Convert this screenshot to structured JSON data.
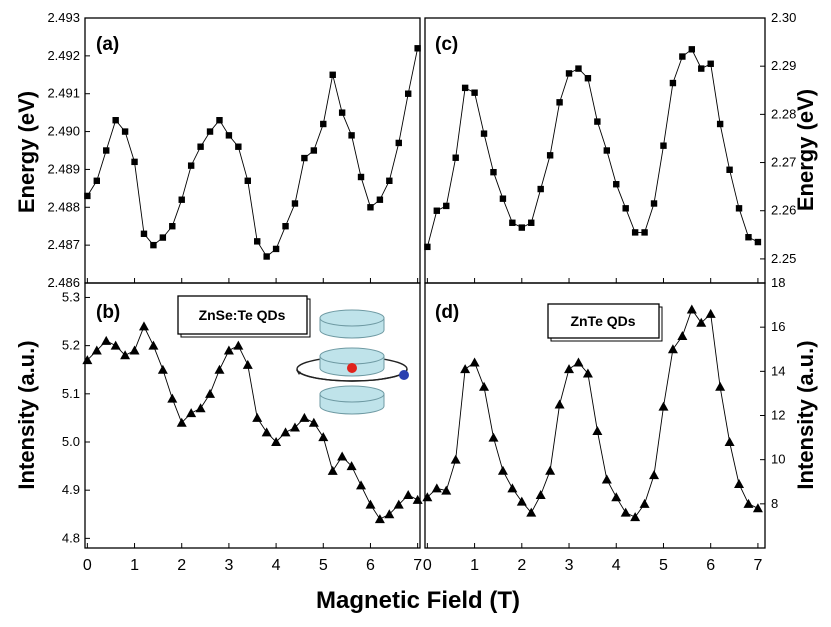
{
  "figure": {
    "xlabel": "Magnetic Field (T)",
    "left_ylabel_top": "Energy (eV)",
    "left_ylabel_bottom": "Intensity (a.u.)",
    "right_ylabel_top": "Energy (eV)",
    "right_ylabel_bottom": "Intensity (a.u.)",
    "legend_b": "ZnSe:Te QDs",
    "legend_d": "ZnTe QDs",
    "inset_colors": {
      "disc": "#bfe3ea",
      "disc_edge": "#6f9aa3",
      "electron": "#e0221b",
      "hole": "#2a3fb0"
    }
  },
  "chart_data": [
    {
      "id": "a",
      "label": "(a)",
      "type": "line",
      "marker": "square",
      "xlabel": "Magnetic Field (T)",
      "ylabel": "Energy (eV)",
      "xlim": [
        -0.05,
        7.05
      ],
      "ylim": [
        2.486,
        2.493
      ],
      "yticks": [
        2.486,
        2.487,
        2.488,
        2.489,
        2.49,
        2.491,
        2.492,
        2.493
      ],
      "ytick_labels": [
        "2.486",
        "2.487",
        "2.488",
        "2.489",
        "2.490",
        "2.491",
        "2.492",
        "2.493"
      ],
      "x": [
        0,
        0.2,
        0.4,
        0.6,
        0.8,
        1.0,
        1.2,
        1.4,
        1.6,
        1.8,
        2.0,
        2.2,
        2.4,
        2.6,
        2.8,
        3.0,
        3.2,
        3.4,
        3.6,
        3.8,
        4.0,
        4.2,
        4.4,
        4.6,
        4.8,
        5.0,
        5.2,
        5.4,
        5.6,
        5.8,
        6.0,
        6.2,
        6.4,
        6.6,
        6.8,
        7.0
      ],
      "y": [
        2.4883,
        2.4887,
        2.4895,
        2.4903,
        2.49,
        2.4892,
        2.4873,
        2.487,
        2.4872,
        2.4875,
        2.4882,
        2.4891,
        2.4896,
        2.49,
        2.4903,
        2.4899,
        2.4896,
        2.4887,
        2.4871,
        2.4867,
        2.4869,
        2.4875,
        2.4881,
        2.4893,
        2.4895,
        2.4902,
        2.4915,
        2.4905,
        2.4899,
        2.4888,
        2.488,
        2.4882,
        2.4887,
        2.4897,
        2.491,
        2.4922
      ]
    },
    {
      "id": "b",
      "label": "(b)",
      "type": "line",
      "marker": "triangle",
      "xlabel": "Magnetic Field (T)",
      "ylabel": "Intensity (a.u.)",
      "xlim": [
        -0.05,
        7.05
      ],
      "ylim": [
        4.78,
        5.33
      ],
      "xticks": [
        0,
        1,
        2,
        3,
        4,
        5,
        6,
        7
      ],
      "xtick_labels": [
        "0",
        "1",
        "2",
        "3",
        "4",
        "5",
        "6",
        "7"
      ],
      "yticks": [
        4.8,
        4.9,
        5.0,
        5.1,
        5.2,
        5.3
      ],
      "ytick_labels": [
        "4.8",
        "4.9",
        "5.0",
        "5.1",
        "5.2",
        "5.3"
      ],
      "x": [
        0,
        0.2,
        0.4,
        0.6,
        0.8,
        1.0,
        1.2,
        1.4,
        1.6,
        1.8,
        2.0,
        2.2,
        2.4,
        2.6,
        2.8,
        3.0,
        3.2,
        3.4,
        3.6,
        3.8,
        4.0,
        4.2,
        4.4,
        4.6,
        4.8,
        5.0,
        5.2,
        5.4,
        5.6,
        5.8,
        6.0,
        6.2,
        6.4,
        6.6,
        6.8,
        7.0
      ],
      "y": [
        5.17,
        5.19,
        5.21,
        5.2,
        5.18,
        5.19,
        5.24,
        5.2,
        5.15,
        5.09,
        5.04,
        5.06,
        5.07,
        5.1,
        5.15,
        5.19,
        5.2,
        5.16,
        5.05,
        5.02,
        5.0,
        5.02,
        5.03,
        5.05,
        5.04,
        5.01,
        4.94,
        4.97,
        4.95,
        4.91,
        4.87,
        4.84,
        4.85,
        4.87,
        4.89,
        4.88
      ]
    },
    {
      "id": "c",
      "label": "(c)",
      "type": "line",
      "marker": "square",
      "xlabel": "Magnetic Field (T)",
      "ylabel": "Energy (eV)",
      "xlim": [
        -0.05,
        7.15
      ],
      "ylim": [
        2.245,
        2.3
      ],
      "yticks": [
        2.25,
        2.26,
        2.27,
        2.28,
        2.29,
        2.3
      ],
      "ytick_labels": [
        "2.25",
        "2.26",
        "2.27",
        "2.28",
        "2.29",
        "2.30"
      ],
      "x": [
        0,
        0.2,
        0.4,
        0.6,
        0.8,
        1.0,
        1.2,
        1.4,
        1.6,
        1.8,
        2.0,
        2.2,
        2.4,
        2.6,
        2.8,
        3.0,
        3.2,
        3.4,
        3.6,
        3.8,
        4.0,
        4.2,
        4.4,
        4.6,
        4.8,
        5.0,
        5.2,
        5.4,
        5.6,
        5.8,
        6.0,
        6.2,
        6.4,
        6.6,
        6.8,
        7.0
      ],
      "y": [
        2.2525,
        2.26,
        2.261,
        2.271,
        2.2855,
        2.2845,
        2.276,
        2.268,
        2.2625,
        2.2575,
        2.2565,
        2.2575,
        2.2645,
        2.2715,
        2.2825,
        2.2885,
        2.2895,
        2.2875,
        2.2785,
        2.2725,
        2.2655,
        2.2605,
        2.2555,
        2.2555,
        2.2615,
        2.2735,
        2.2865,
        2.292,
        2.2935,
        2.2895,
        2.2905,
        2.278,
        2.2685,
        2.2605,
        2.2545,
        2.2535
      ]
    },
    {
      "id": "d",
      "label": "(d)",
      "type": "line",
      "marker": "triangle",
      "xlabel": "Magnetic Field (T)",
      "ylabel": "Intensity (a.u.)",
      "xlim": [
        -0.05,
        7.15
      ],
      "ylim": [
        6.0,
        18.0
      ],
      "xticks": [
        0,
        1,
        2,
        3,
        4,
        5,
        6,
        7
      ],
      "xtick_labels": [
        "0",
        "1",
        "2",
        "3",
        "4",
        "5",
        "6",
        "7"
      ],
      "yticks": [
        8,
        10,
        12,
        14,
        16,
        18
      ],
      "ytick_labels": [
        "8",
        "10",
        "12",
        "14",
        "16",
        "18"
      ],
      "x": [
        0,
        0.2,
        0.4,
        0.6,
        0.8,
        1.0,
        1.2,
        1.4,
        1.6,
        1.8,
        2.0,
        2.2,
        2.4,
        2.6,
        2.8,
        3.0,
        3.2,
        3.4,
        3.6,
        3.8,
        4.0,
        4.2,
        4.4,
        4.6,
        4.8,
        5.0,
        5.2,
        5.4,
        5.6,
        5.8,
        6.0,
        6.2,
        6.4,
        6.6,
        6.8,
        7.0
      ],
      "y": [
        8.3,
        8.7,
        8.6,
        10.0,
        14.1,
        14.4,
        13.3,
        11.0,
        9.5,
        8.7,
        8.1,
        7.6,
        8.4,
        9.5,
        12.5,
        14.1,
        14.4,
        13.9,
        11.3,
        9.1,
        8.3,
        7.6,
        7.4,
        8.0,
        9.3,
        12.4,
        15.0,
        15.6,
        16.8,
        16.2,
        16.6,
        13.3,
        10.8,
        8.9,
        8.0,
        7.8
      ]
    }
  ]
}
